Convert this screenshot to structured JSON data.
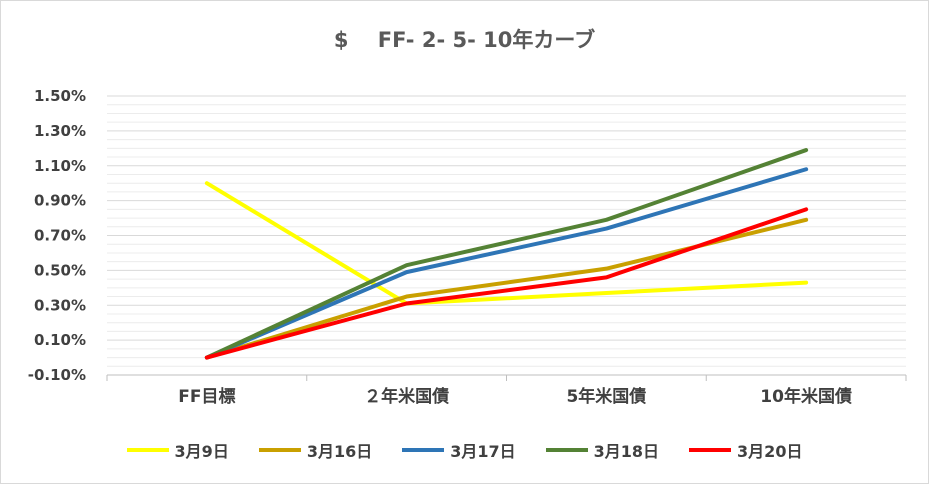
{
  "chart_data": {
    "type": "line",
    "title": "$    FF- 2- 5- 10年カーブ",
    "categories": [
      "FF目標",
      "２年米国債",
      "5年米国債",
      "10年米国債"
    ],
    "y_ticks": [
      "1.50%",
      "1.30%",
      "1.10%",
      "0.90%",
      "0.70%",
      "0.50%",
      "0.30%",
      "0.10%",
      "-0.10%"
    ],
    "ylim": [
      -0.1,
      1.5
    ],
    "grid": true,
    "legend_position": "bottom",
    "series": [
      {
        "name": "3月9日",
        "color": "#ffff00",
        "values": [
          1.0,
          0.31,
          0.37,
          0.43
        ]
      },
      {
        "name": "3月16日",
        "color": "#c9a000",
        "values": [
          0.0,
          0.35,
          0.51,
          0.79
        ]
      },
      {
        "name": "3月17日",
        "color": "#2e75b6",
        "values": [
          0.0,
          0.49,
          0.74,
          1.08
        ]
      },
      {
        "name": "3月18日",
        "color": "#548235",
        "values": [
          0.0,
          0.53,
          0.79,
          1.19
        ]
      },
      {
        "name": "3月20日",
        "color": "#ff0000",
        "values": [
          0.0,
          0.31,
          0.46,
          0.85
        ]
      }
    ]
  }
}
